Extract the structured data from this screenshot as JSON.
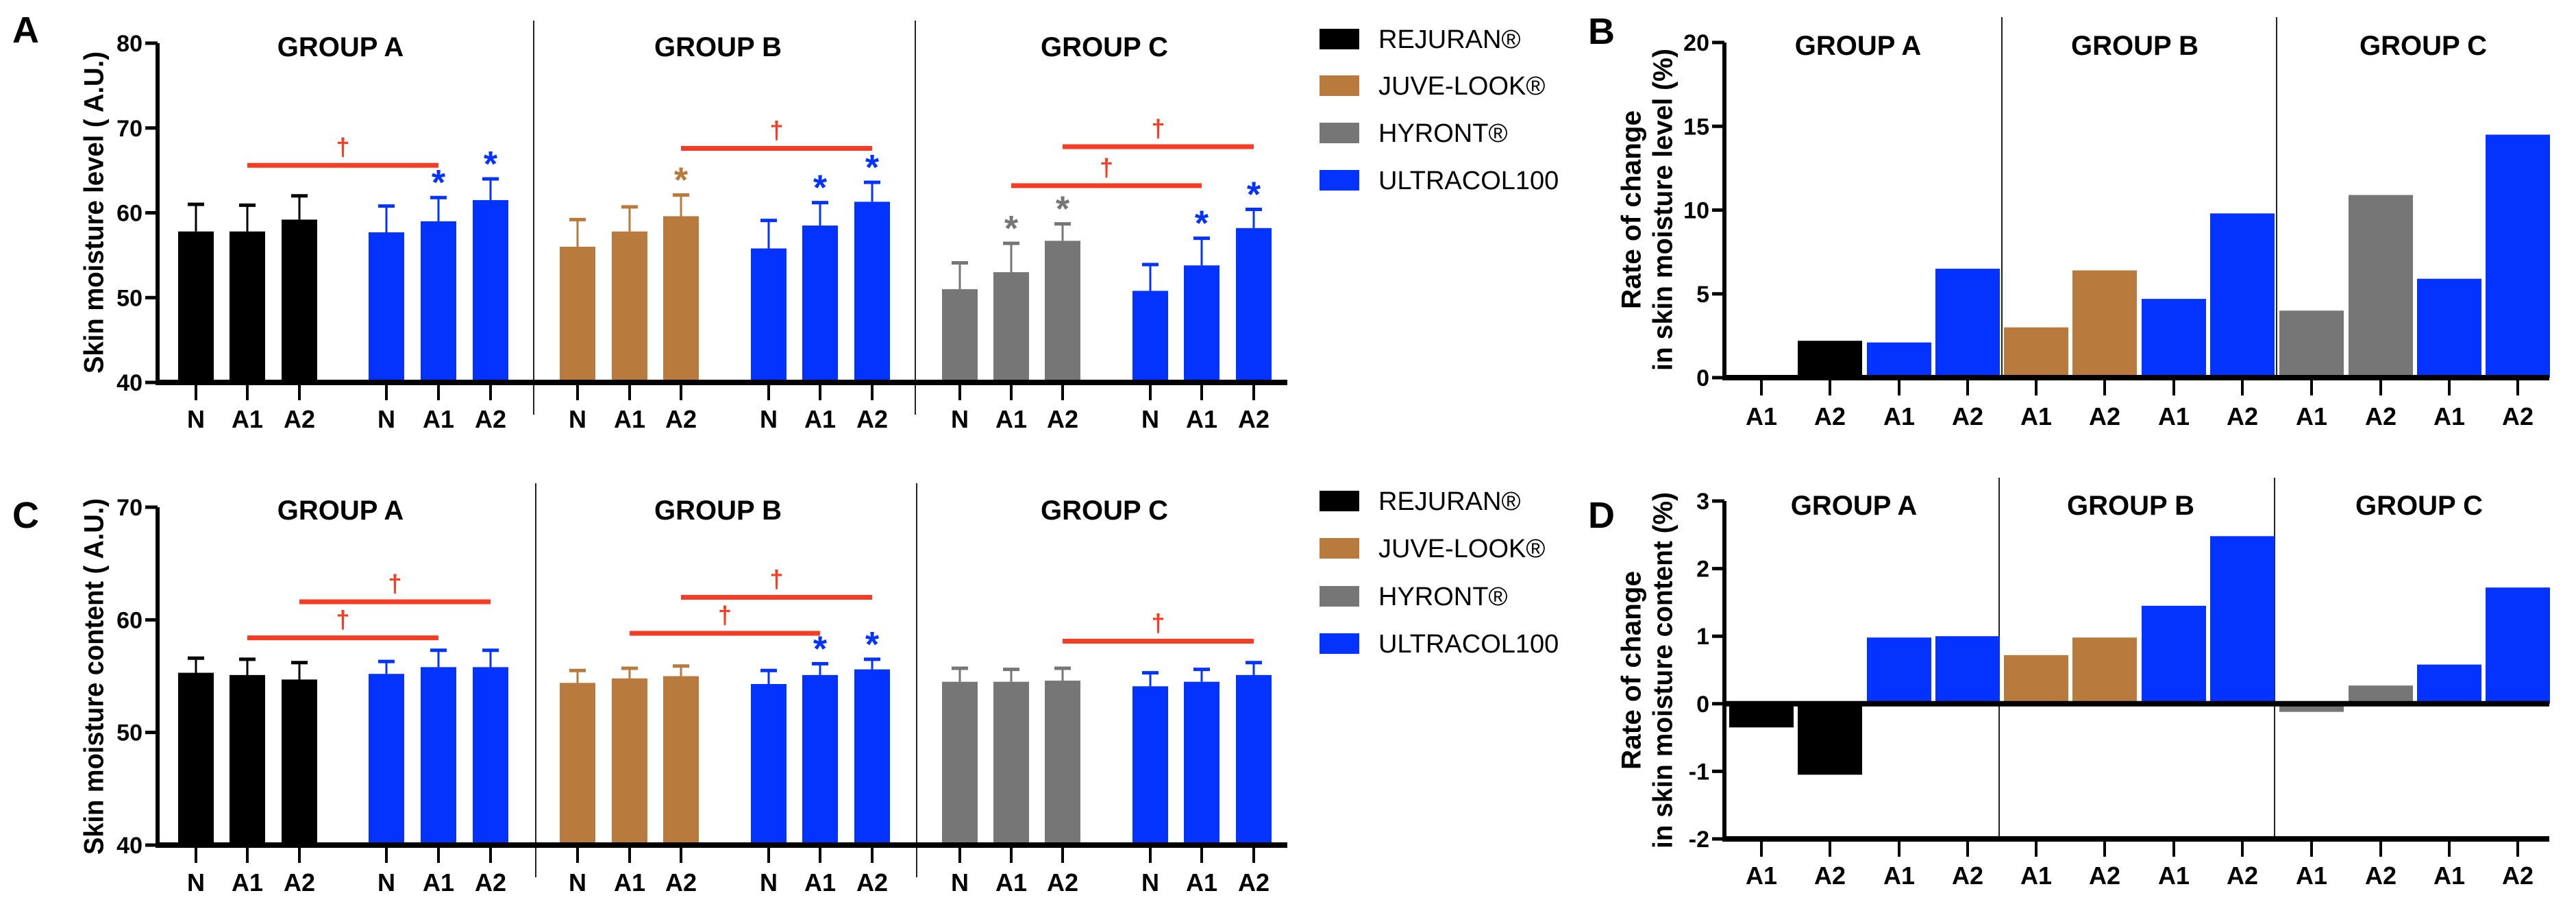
{
  "legend_top": {
    "items": [
      {
        "label": "REJURAN®",
        "color": "#000000"
      },
      {
        "label": "JUVE-LOOK®",
        "color": "#b87a3d"
      },
      {
        "label": "HYRONT®",
        "color": "#767676"
      },
      {
        "label": "ULTRACOL100",
        "color": "#0433ff"
      }
    ]
  },
  "legend_bottom": {
    "items": [
      {
        "label": "REJURAN®",
        "color": "#000000"
      },
      {
        "label": "JUVE-LOOK®",
        "color": "#b87a3d"
      },
      {
        "label": "HYRONT®",
        "color": "#767676"
      },
      {
        "label": "ULTRACOL100",
        "color": "#0433ff"
      }
    ]
  },
  "significance_color": "#f53d25",
  "chart_data": [
    {
      "panel": "A",
      "type": "bar",
      "ylabel": [
        "Skin moisture level ( A.U.)"
      ],
      "ylim": [
        40,
        80
      ],
      "baseline": 40,
      "yticks": [
        "40",
        "50",
        "60",
        "70",
        "80"
      ],
      "ytick_values": [
        40,
        50,
        60,
        70,
        80
      ],
      "groups": [
        {
          "title": "GROUP A",
          "series": [
            {
              "product": "REJURAN®",
              "x": [
                "N",
                "A1",
                "A2"
              ],
              "values": [
                57.8,
                57.8,
                59.2
              ],
              "sd": [
                3.2,
                3.1,
                2.8
              ],
              "stars": [
                "",
                "",
                ""
              ]
            },
            {
              "product": "ULTRACOL100",
              "x": [
                "N",
                "A1",
                "A2"
              ],
              "values": [
                57.7,
                59.0,
                61.5
              ],
              "sd": [
                3.1,
                2.8,
                2.5
              ],
              "stars": [
                "",
                "*",
                "*"
              ]
            }
          ]
        },
        {
          "title": "GROUP B",
          "series": [
            {
              "product": "JUVE-LOOK®",
              "x": [
                "N",
                "A1",
                "A2"
              ],
              "values": [
                56.0,
                57.8,
                59.6
              ],
              "sd": [
                3.2,
                2.9,
                2.5
              ],
              "stars": [
                "",
                "",
                "*"
              ]
            },
            {
              "product": "ULTRACOL100",
              "x": [
                "N",
                "A1",
                "A2"
              ],
              "values": [
                55.8,
                58.5,
                61.3
              ],
              "sd": [
                3.3,
                2.7,
                2.3
              ],
              "stars": [
                "",
                "*",
                "*"
              ]
            }
          ]
        },
        {
          "title": "GROUP C",
          "series": [
            {
              "product": "HYRONT®",
              "x": [
                "N",
                "A1",
                "A2"
              ],
              "values": [
                51.0,
                53.0,
                56.7
              ],
              "sd": [
                3.1,
                3.4,
                2.0
              ],
              "stars": [
                "",
                "*",
                "*"
              ]
            },
            {
              "product": "ULTRACOL100",
              "x": [
                "N",
                "A1",
                "A2"
              ],
              "values": [
                50.8,
                53.8,
                58.2
              ],
              "sd": [
                3.1,
                3.2,
                2.2
              ],
              "stars": [
                "",
                "*",
                "*"
              ]
            }
          ]
        }
      ],
      "daggers": [
        {
          "from": 1,
          "to": 4,
          "y": 65.6,
          "mark": "†"
        },
        {
          "from": 8,
          "to": 11,
          "y": 67.6,
          "mark": "†"
        },
        {
          "from": 13,
          "to": 16,
          "y": 63.2,
          "mark": "†"
        },
        {
          "from": 14,
          "to": 17,
          "y": 67.8,
          "mark": "†"
        }
      ]
    },
    {
      "panel": "B",
      "type": "bar",
      "ylabel": [
        "Rate of change",
        "in skin moisture level (%)"
      ],
      "ylim": [
        0,
        20
      ],
      "baseline": 0,
      "yticks": [
        "0",
        "5",
        "10",
        "15",
        "20"
      ],
      "ytick_values": [
        0,
        5,
        10,
        15,
        20
      ],
      "groups": [
        {
          "title": "GROUP A",
          "series": [
            {
              "product": "REJURAN®",
              "x": [
                "A1",
                "A2"
              ],
              "values": [
                0.0,
                2.2
              ]
            },
            {
              "product": "ULTRACOL100",
              "x": [
                "A1",
                "A2"
              ],
              "values": [
                2.1,
                6.5
              ]
            }
          ]
        },
        {
          "title": "GROUP B",
          "series": [
            {
              "product": "JUVE-LOOK®",
              "x": [
                "A1",
                "A2"
              ],
              "values": [
                3.0,
                6.4
              ]
            },
            {
              "product": "ULTRACOL100",
              "x": [
                "A1",
                "A2"
              ],
              "values": [
                4.7,
                9.8
              ]
            }
          ]
        },
        {
          "title": "GROUP C",
          "series": [
            {
              "product": "HYRONT®",
              "x": [
                "A1",
                "A2"
              ],
              "values": [
                4.0,
                10.9
              ]
            },
            {
              "product": "ULTRACOL100",
              "x": [
                "A1",
                "A2"
              ],
              "values": [
                5.9,
                14.5
              ]
            }
          ]
        }
      ],
      "daggers": []
    },
    {
      "panel": "C",
      "type": "bar",
      "ylabel": [
        "Skin moisture content ( A.U.)"
      ],
      "ylim": [
        40,
        70
      ],
      "baseline": 40,
      "yticks": [
        "40",
        "50",
        "60",
        "70"
      ],
      "ytick_values": [
        40,
        50,
        60,
        70
      ],
      "groups": [
        {
          "title": "GROUP A",
          "series": [
            {
              "product": "REJURAN®",
              "x": [
                "N",
                "A1",
                "A2"
              ],
              "values": [
                55.3,
                55.1,
                54.7
              ],
              "sd": [
                1.3,
                1.4,
                1.5
              ],
              "stars": [
                "",
                "",
                ""
              ]
            },
            {
              "product": "ULTRACOL100",
              "x": [
                "N",
                "A1",
                "A2"
              ],
              "values": [
                55.2,
                55.8,
                55.8
              ],
              "sd": [
                1.1,
                1.5,
                1.5
              ],
              "stars": [
                "",
                "",
                ""
              ]
            }
          ]
        },
        {
          "title": "GROUP B",
          "series": [
            {
              "product": "JUVE-LOOK®",
              "x": [
                "N",
                "A1",
                "A2"
              ],
              "values": [
                54.4,
                54.8,
                55.0
              ],
              "sd": [
                1.1,
                0.9,
                0.9
              ],
              "stars": [
                "",
                "",
                ""
              ]
            },
            {
              "product": "ULTRACOL100",
              "x": [
                "N",
                "A1",
                "A2"
              ],
              "values": [
                54.3,
                55.1,
                55.6
              ],
              "sd": [
                1.2,
                1.0,
                0.9
              ],
              "stars": [
                "",
                "*",
                "*"
              ]
            }
          ]
        },
        {
          "title": "GROUP C",
          "series": [
            {
              "product": "HYRONT®",
              "x": [
                "N",
                "A1",
                "A2"
              ],
              "values": [
                54.5,
                54.5,
                54.6
              ],
              "sd": [
                1.2,
                1.1,
                1.1
              ],
              "stars": [
                "",
                "",
                ""
              ]
            },
            {
              "product": "ULTRACOL100",
              "x": [
                "N",
                "A1",
                "A2"
              ],
              "values": [
                54.1,
                54.5,
                55.1
              ],
              "sd": [
                1.2,
                1.1,
                1.1
              ],
              "stars": [
                "",
                "",
                ""
              ]
            }
          ]
        }
      ],
      "daggers": [
        {
          "from": 1,
          "to": 4,
          "y": 58.4,
          "mark": "†"
        },
        {
          "from": 2,
          "to": 5,
          "y": 61.6,
          "mark": "†"
        },
        {
          "from": 7,
          "to": 10,
          "y": 58.8,
          "mark": "†"
        },
        {
          "from": 8,
          "to": 11,
          "y": 62.0,
          "mark": "†"
        },
        {
          "from": 14,
          "to": 17,
          "y": 58.1,
          "mark": "†"
        }
      ]
    },
    {
      "panel": "D",
      "type": "bar",
      "ylabel": [
        "Rate of change",
        "in skin moisture content (%)"
      ],
      "ylim": [
        -2,
        3
      ],
      "baseline": 0,
      "yticks": [
        "-2",
        "-1",
        "0",
        "1",
        "2",
        "3"
      ],
      "ytick_values": [
        -2,
        -1,
        0,
        1,
        2,
        3
      ],
      "groups": [
        {
          "title": "GROUP A",
          "series": [
            {
              "product": "REJURAN®",
              "x": [
                "A1",
                "A2"
              ],
              "values": [
                -0.35,
                -1.05
              ]
            },
            {
              "product": "ULTRACOL100",
              "x": [
                "A1",
                "A2"
              ],
              "values": [
                0.98,
                1.0
              ]
            }
          ]
        },
        {
          "title": "GROUP B",
          "series": [
            {
              "product": "JUVE-LOOK®",
              "x": [
                "A1",
                "A2"
              ],
              "values": [
                0.72,
                0.98
              ]
            },
            {
              "product": "ULTRACOL100",
              "x": [
                "A1",
                "A2"
              ],
              "values": [
                1.45,
                2.48
              ]
            }
          ]
        },
        {
          "title": "GROUP C",
          "series": [
            {
              "product": "HYRONT®",
              "x": [
                "A1",
                "A2"
              ],
              "values": [
                -0.12,
                0.27
              ]
            },
            {
              "product": "ULTRACOL100",
              "x": [
                "A1",
                "A2"
              ],
              "values": [
                0.58,
                1.72
              ]
            }
          ]
        }
      ],
      "daggers": []
    }
  ]
}
